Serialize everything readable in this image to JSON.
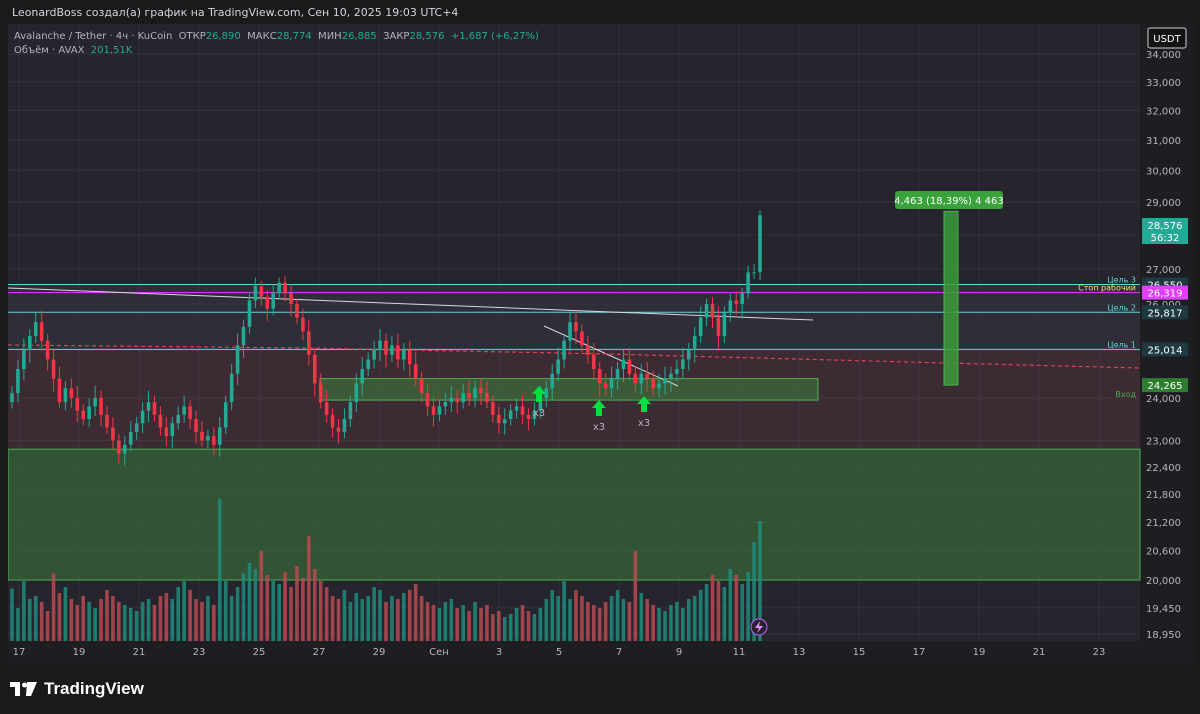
{
  "header": {
    "text": "LeonardBoss создал(а) график на TradingView.com, Сен 10, 2025 19:03 UTC+4"
  },
  "legend": {
    "symbol": "Avalanche / Tether · 4ч · KuCoin",
    "open_label": "ОТКР",
    "open": "26,890",
    "high_label": "МАКС",
    "high": "28,774",
    "low_label": "МИН",
    "low": "26,885",
    "close_label": "ЗАКР",
    "close": "28,576",
    "change": "+1,687 (+6,27%)",
    "volume_label": "Объём · AVAX",
    "volume": "201,51K"
  },
  "currency_button": "USDT",
  "brand": "TradingView",
  "colors": {
    "up": "#22ab94",
    "down": "#f23645",
    "bg": "#1e1e24",
    "cyan": "#5dd7d7",
    "magenta": "#e040fb",
    "green_zone": "#4caf50"
  },
  "chart_data": {
    "type": "candlestick",
    "y_axis": {
      "scale": "log",
      "ticks": [
        "34,000",
        "33,000",
        "32,000",
        "31,000",
        "30,000",
        "29,000",
        "28,000",
        "27,000",
        "26,000",
        "25,000",
        "24,000",
        "23,000",
        "22,400",
        "21,800",
        "21,200",
        "20,600",
        "20,000",
        "19,450",
        "18,950"
      ]
    },
    "x_axis": {
      "ticks": [
        "17",
        "19",
        "21",
        "23",
        "25",
        "27",
        "29",
        "Сен",
        "3",
        "5",
        "7",
        "9",
        "11",
        "13",
        "15",
        "17",
        "19",
        "21",
        "23"
      ]
    },
    "last_price": "28,576",
    "countdown": "56:32",
    "levels": [
      {
        "price": 26550,
        "label": "Цель 3",
        "tag": "26,550",
        "color": "#5dd7d7"
      },
      {
        "price": 26319,
        "label": "Стоп рабочий",
        "tag": "26,319",
        "color": "#e040fb"
      },
      {
        "price": 25817,
        "label": "Цель 2",
        "tag": "25,817",
        "color": "#5dd7d7"
      },
      {
        "price": 25014,
        "label": "Цель 1",
        "tag": "25,014",
        "color": "#5dd7d7"
      },
      {
        "price": 24265,
        "label": "Вход",
        "tag": "24,265",
        "color": "#4caf50"
      }
    ],
    "green_zone": {
      "from": 20000,
      "to": 22800
    },
    "entry_zone": {
      "from": 23950,
      "to": 24400
    },
    "measure_label": "4,463 (18,39%) 4 463",
    "markers": [
      "x3",
      "x3",
      "x3"
    ],
    "closes": [
      24.1,
      24.6,
      25.0,
      25.3,
      25.6,
      25.2,
      24.8,
      24.4,
      23.9,
      24.2,
      24.0,
      23.7,
      23.5,
      23.8,
      24.0,
      23.6,
      23.3,
      23.0,
      22.7,
      22.9,
      23.2,
      23.4,
      23.7,
      23.9,
      23.6,
      23.3,
      23.1,
      23.4,
      23.6,
      23.8,
      23.5,
      23.2,
      23.0,
      23.1,
      22.9,
      23.3,
      23.9,
      24.5,
      25.1,
      25.5,
      26.1,
      26.5,
      26.2,
      25.9,
      26.3,
      26.6,
      26.3,
      26.0,
      25.7,
      25.4,
      24.9,
      24.3,
      23.9,
      23.6,
      23.3,
      23.2,
      23.5,
      23.9,
      24.3,
      24.6,
      24.8,
      25.0,
      25.2,
      24.9,
      25.1,
      24.8,
      25.0,
      24.7,
      24.4,
      24.1,
      23.8,
      23.6,
      23.8,
      23.9,
      24.0,
      23.9,
      24.1,
      24.0,
      24.2,
      24.1,
      23.9,
      23.6,
      23.4,
      23.5,
      23.7,
      23.8,
      23.6,
      23.5,
      23.7,
      24.0,
      24.2,
      24.5,
      24.8,
      25.2,
      25.6,
      25.4,
      25.1,
      24.9,
      24.6,
      24.3,
      24.2,
      24.4,
      24.6,
      24.8,
      24.5,
      24.3,
      24.5,
      24.4,
      24.2,
      24.3,
      24.4,
      24.5,
      24.6,
      24.8,
      25.0,
      25.3,
      25.7,
      26.0,
      25.7,
      25.3,
      25.8,
      26.1,
      26.0,
      26.3,
      26.9,
      26.9,
      28.6
    ],
    "volumes": [
      35,
      22,
      40,
      28,
      30,
      26,
      20,
      45,
      32,
      36,
      28,
      24,
      30,
      26,
      22,
      28,
      34,
      30,
      26,
      24,
      22,
      20,
      26,
      28,
      24,
      30,
      32,
      28,
      36,
      40,
      34,
      28,
      26,
      30,
      24,
      95,
      40,
      30,
      36,
      45,
      52,
      48,
      60,
      44,
      40,
      38,
      46,
      36,
      50,
      42,
      70,
      48,
      40,
      36,
      30,
      28,
      34,
      26,
      32,
      28,
      30,
      36,
      34,
      26,
      30,
      28,
      32,
      34,
      38,
      30,
      26,
      24,
      22,
      26,
      28,
      22,
      24,
      20,
      26,
      22,
      24,
      18,
      20,
      16,
      18,
      22,
      24,
      20,
      18,
      22,
      28,
      34,
      30,
      40,
      28,
      34,
      30,
      26,
      24,
      22,
      26,
      30,
      34,
      28,
      26,
      60,
      32,
      28,
      24,
      22,
      20,
      24,
      26,
      22,
      28,
      30,
      34,
      38,
      44,
      40,
      36,
      48,
      44,
      38,
      46,
      66,
      80
    ]
  }
}
